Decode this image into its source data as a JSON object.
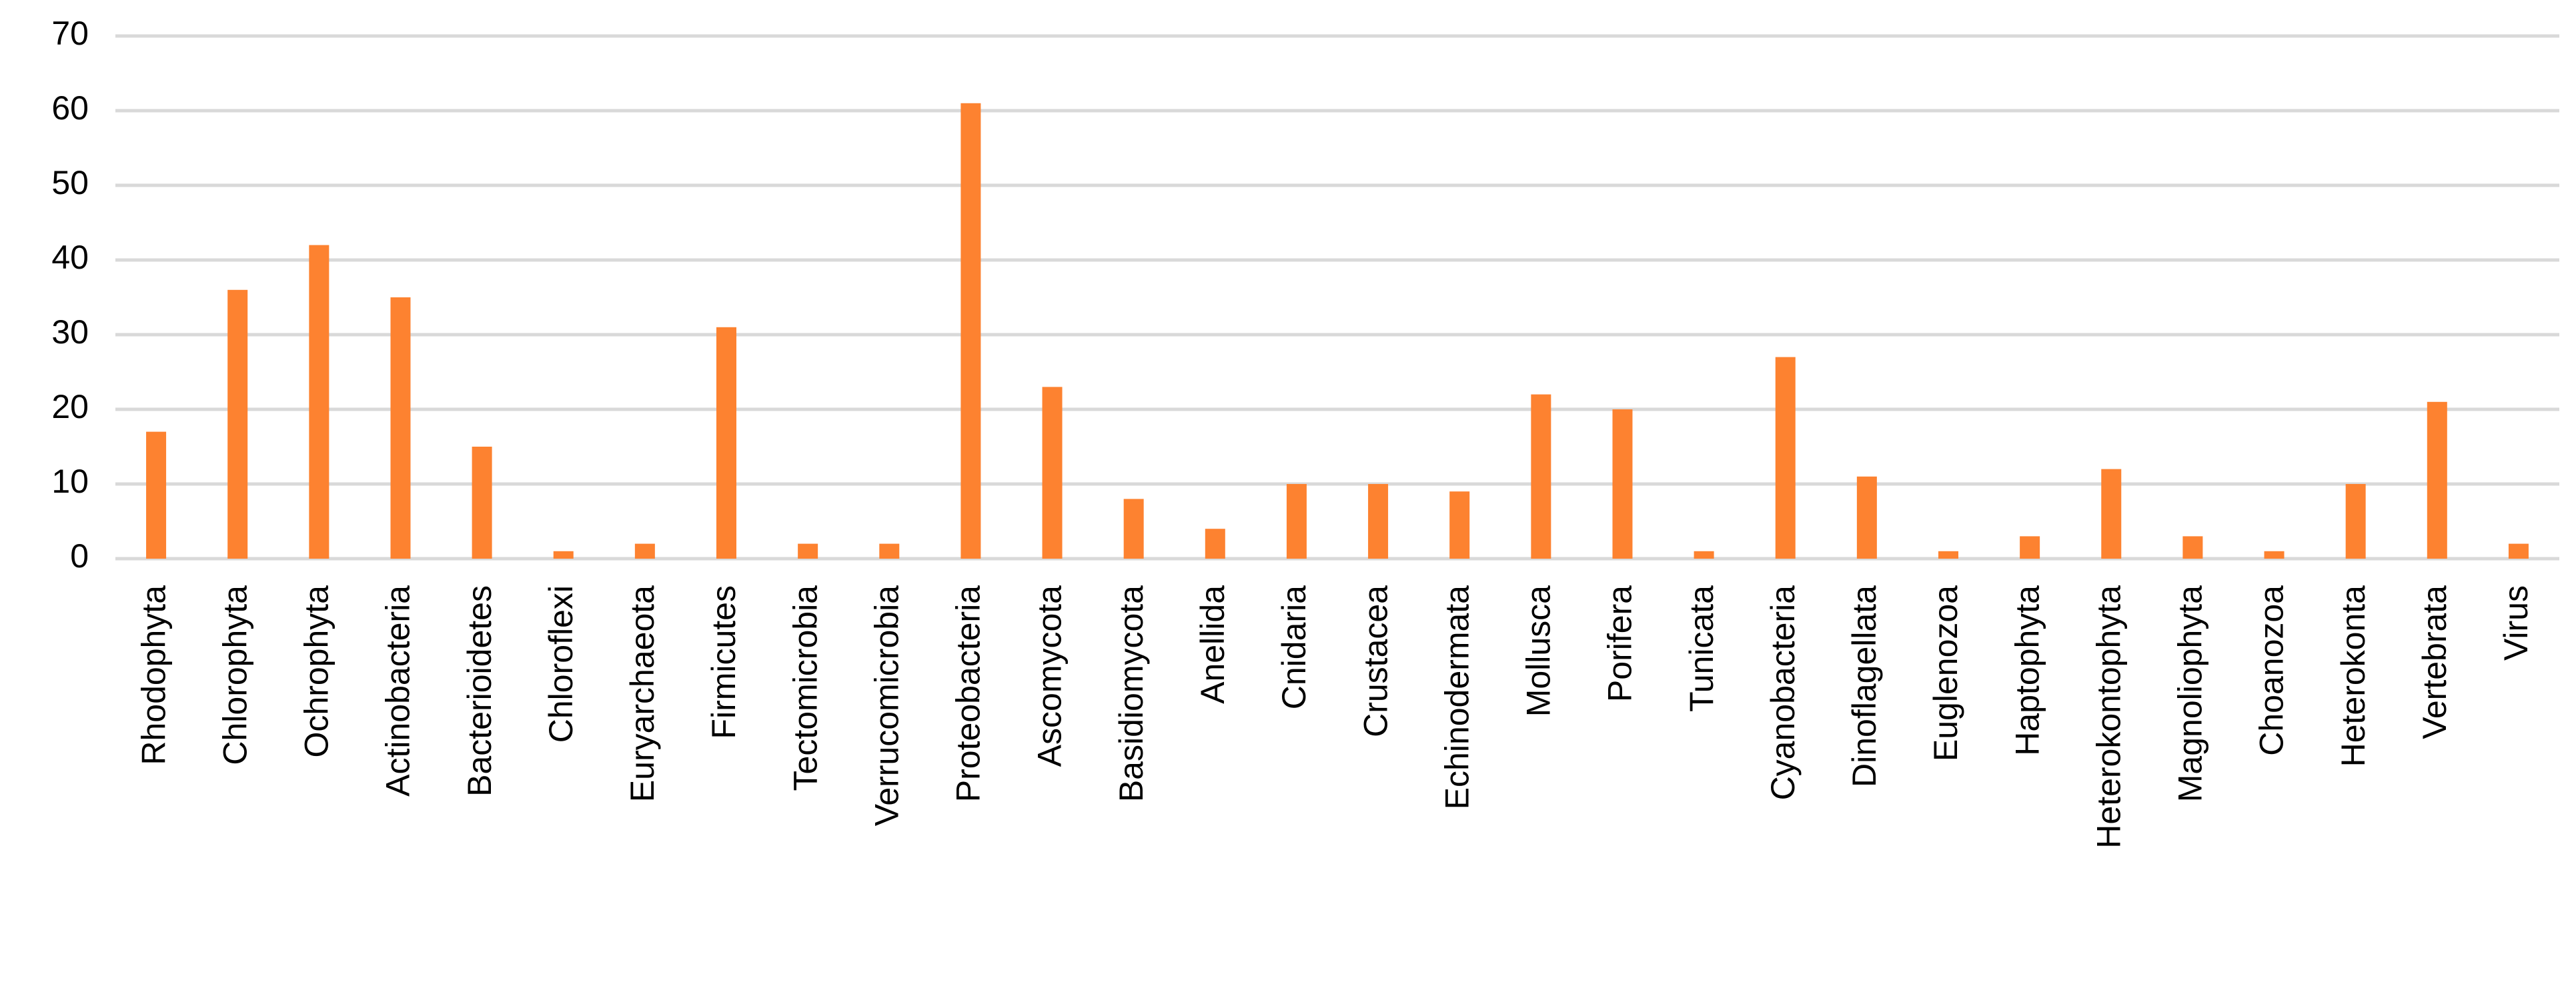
{
  "chart_data": {
    "type": "bar",
    "categories": [
      "Rhodophyta",
      "Chlorophyta",
      "Ochrophyta",
      "Actinobacteria",
      "Bacterioidetes",
      "Chloroflexi",
      "Euryarchaeota",
      "Firmicutes",
      "Tectomicrobia",
      "Verrucomicrobia",
      "Proteobacteria",
      "Ascomycota",
      "Basidiomycota",
      "Anellida",
      "Cnidaria",
      "Crustacea",
      "Echinodermata",
      "Mollusca",
      "Porifera",
      "Tunicata",
      "Cyanobacteria",
      "Dinoflagellata",
      "Euglenozoa",
      "Haptophyta",
      "Heterokontophyta",
      "Magnoliophyta",
      "Choanozoa",
      "Heterokonta",
      "Vertebrata",
      "Virus"
    ],
    "values": [
      17,
      36,
      42,
      35,
      15,
      1,
      2,
      31,
      2,
      2,
      61,
      23,
      8,
      4,
      10,
      10,
      9,
      22,
      20,
      1,
      27,
      11,
      1,
      3,
      12,
      3,
      1,
      10,
      21,
      2
    ],
    "color": "#fd8230",
    "ylim": [
      0,
      70
    ],
    "yticks": [
      0,
      10,
      20,
      30,
      40,
      50,
      60,
      70
    ],
    "grid": true
  }
}
